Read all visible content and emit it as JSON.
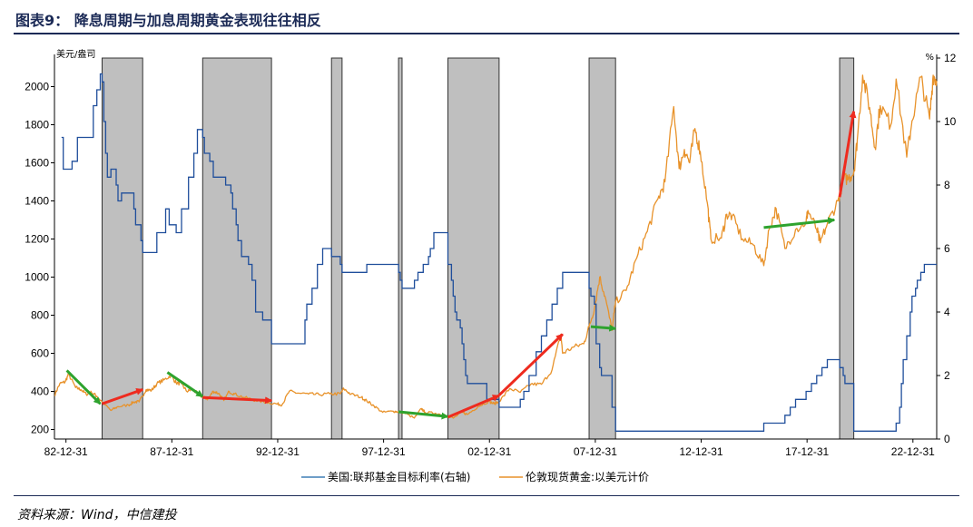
{
  "title": "图表9：  降息周期与加息周期黄金表现往往相反",
  "source": "资料来源：Wind，中信建投",
  "colors": {
    "fed_rate": "#1f4e9b",
    "fed_rate_light": "#3f7fb5",
    "gold": "#e8922a",
    "gold_highlight": "#c9b53a",
    "shade": "#bfbfbf",
    "arrow_green": "#2ea32e",
    "arrow_red": "#ee2b1f",
    "header": "#1b2a56"
  },
  "chart_data": {
    "type": "line",
    "title": "",
    "left_axis": {
      "unit": "美元/盎司",
      "range": [
        150,
        2150
      ],
      "ticks": [
        "200",
        "400",
        "600",
        "800",
        "1000",
        "1200",
        "1400",
        "1600",
        "1800",
        "2000"
      ]
    },
    "right_axis": {
      "unit": "%",
      "range": [
        0,
        12
      ],
      "ticks": [
        "0",
        "2",
        "4",
        "6",
        "8",
        "10",
        "12"
      ]
    },
    "x_axis": {
      "range": [
        "1982-06",
        "2024-02"
      ],
      "ticks": [
        "82-12-31",
        "87-12-31",
        "92-12-31",
        "97-12-31",
        "02-12-31",
        "07-12-31",
        "12-12-31",
        "17-12-31",
        "22-12-31"
      ]
    },
    "shaded_periods": [
      [
        "1984-09",
        "1986-08"
      ],
      [
        "1989-06",
        "1992-09"
      ],
      [
        "1995-07",
        "1996-01"
      ],
      [
        "1998-09",
        "1998-11"
      ],
      [
        "2001-01",
        "2003-06"
      ],
      [
        "2007-09",
        "2008-12"
      ],
      [
        "2019-07",
        "2020-03"
      ]
    ],
    "series": [
      {
        "name": "美国:联邦基金目标利率(右轴)",
        "axis": "right",
        "points": [
          [
            "1982-10",
            9.5
          ],
          [
            "1982-11",
            8.5
          ],
          [
            "1983-02",
            8.5
          ],
          [
            "1983-04",
            8.75
          ],
          [
            "1983-07",
            9.5
          ],
          [
            "1984-01",
            9.5
          ],
          [
            "1984-04",
            10.5
          ],
          [
            "1984-06",
            11.0
          ],
          [
            "1984-08",
            11.5
          ],
          [
            "1984-09",
            11.25
          ],
          [
            "1984-10",
            10.0
          ],
          [
            "1984-11",
            9.0
          ],
          [
            "1984-12",
            8.25
          ],
          [
            "1985-02",
            8.5
          ],
          [
            "1985-05",
            8.0
          ],
          [
            "1985-06",
            7.5
          ],
          [
            "1985-08",
            7.75
          ],
          [
            "1985-12",
            7.75
          ],
          [
            "1986-03",
            7.25
          ],
          [
            "1986-04",
            6.75
          ],
          [
            "1986-07",
            6.25
          ],
          [
            "1986-08",
            5.875
          ],
          [
            "1986-12",
            5.875
          ],
          [
            "1987-04",
            6.5
          ],
          [
            "1987-09",
            7.25
          ],
          [
            "1987-11",
            6.75
          ],
          [
            "1988-03",
            6.5
          ],
          [
            "1988-06",
            7.25
          ],
          [
            "1988-10",
            8.25
          ],
          [
            "1989-01",
            9.0
          ],
          [
            "1989-03",
            9.75
          ],
          [
            "1989-06",
            9.5
          ],
          [
            "1989-07",
            9.0
          ],
          [
            "1989-10",
            8.75
          ],
          [
            "1989-12",
            8.25
          ],
          [
            "1990-07",
            8.0
          ],
          [
            "1990-10",
            7.75
          ],
          [
            "1990-11",
            7.25
          ],
          [
            "1991-01",
            6.75
          ],
          [
            "1991-02",
            6.25
          ],
          [
            "1991-04",
            5.75
          ],
          [
            "1991-08",
            5.5
          ],
          [
            "1991-10",
            5.0
          ],
          [
            "1991-12",
            4.0
          ],
          [
            "1992-04",
            3.75
          ],
          [
            "1992-09",
            3.0
          ],
          [
            "1994-02",
            3.0
          ],
          [
            "1994-04",
            3.75
          ],
          [
            "1994-05",
            4.25
          ],
          [
            "1994-08",
            4.75
          ],
          [
            "1994-11",
            5.5
          ],
          [
            "1995-02",
            6.0
          ],
          [
            "1995-07",
            5.75
          ],
          [
            "1995-12",
            5.5
          ],
          [
            "1996-01",
            5.25
          ],
          [
            "1997-03",
            5.5
          ],
          [
            "1998-09",
            5.25
          ],
          [
            "1998-10",
            5.0
          ],
          [
            "1998-11",
            4.75
          ],
          [
            "1999-06",
            5.0
          ],
          [
            "1999-08",
            5.25
          ],
          [
            "1999-11",
            5.5
          ],
          [
            "2000-02",
            5.75
          ],
          [
            "2000-03",
            6.0
          ],
          [
            "2000-05",
            6.5
          ],
          [
            "2000-12",
            6.5
          ],
          [
            "2001-01",
            5.5
          ],
          [
            "2001-03",
            5.0
          ],
          [
            "2001-04",
            4.5
          ],
          [
            "2001-05",
            4.0
          ],
          [
            "2001-06",
            3.75
          ],
          [
            "2001-08",
            3.5
          ],
          [
            "2001-09",
            3.0
          ],
          [
            "2001-10",
            2.5
          ],
          [
            "2001-11",
            2.0
          ],
          [
            "2001-12",
            1.75
          ],
          [
            "2002-11",
            1.25
          ],
          [
            "2003-06",
            1.0
          ],
          [
            "2004-06",
            1.25
          ],
          [
            "2004-08",
            1.5
          ],
          [
            "2004-11",
            2.0
          ],
          [
            "2005-03",
            2.75
          ],
          [
            "2005-06",
            3.25
          ],
          [
            "2005-09",
            3.75
          ],
          [
            "2005-12",
            4.25
          ],
          [
            "2006-03",
            4.75
          ],
          [
            "2006-06",
            5.25
          ],
          [
            "2007-09",
            4.75
          ],
          [
            "2007-10",
            4.5
          ],
          [
            "2007-12",
            4.25
          ],
          [
            "2008-01",
            3.0
          ],
          [
            "2008-03",
            2.25
          ],
          [
            "2008-04",
            2.0
          ],
          [
            "2008-10",
            1.0
          ],
          [
            "2008-12",
            0.25
          ],
          [
            "2015-12",
            0.5
          ],
          [
            "2016-12",
            0.75
          ],
          [
            "2017-03",
            1.0
          ],
          [
            "2017-06",
            1.25
          ],
          [
            "2017-12",
            1.5
          ],
          [
            "2018-03",
            1.75
          ],
          [
            "2018-06",
            2.0
          ],
          [
            "2018-09",
            2.25
          ],
          [
            "2018-12",
            2.5
          ],
          [
            "2019-07",
            2.25
          ],
          [
            "2019-09",
            2.0
          ],
          [
            "2019-10",
            1.75
          ],
          [
            "2020-03",
            0.25
          ],
          [
            "2022-03",
            0.5
          ],
          [
            "2022-05",
            1.0
          ],
          [
            "2022-06",
            1.75
          ],
          [
            "2022-07",
            2.5
          ],
          [
            "2022-09",
            3.25
          ],
          [
            "2022-11",
            4.0
          ],
          [
            "2022-12",
            4.5
          ],
          [
            "2023-02",
            4.75
          ],
          [
            "2023-03",
            5.0
          ],
          [
            "2023-05",
            5.25
          ],
          [
            "2023-07",
            5.5
          ],
          [
            "2024-02",
            5.5
          ]
        ]
      },
      {
        "name": "伦敦现货黄金:以美元计价",
        "axis": "left",
        "points": [
          [
            "1982-06",
            380
          ],
          [
            "1982-09",
            440
          ],
          [
            "1982-12",
            450
          ],
          [
            "1983-02",
            490
          ],
          [
            "1983-06",
            420
          ],
          [
            "1983-09",
            410
          ],
          [
            "1983-12",
            385
          ],
          [
            "1984-03",
            395
          ],
          [
            "1984-06",
            375
          ],
          [
            "1984-09",
            345
          ],
          [
            "1985-02",
            300
          ],
          [
            "1985-06",
            320
          ],
          [
            "1985-12",
            328
          ],
          [
            "1986-03",
            345
          ],
          [
            "1986-06",
            345
          ],
          [
            "1986-10",
            410
          ],
          [
            "1987-01",
            405
          ],
          [
            "1987-04",
            440
          ],
          [
            "1987-08",
            460
          ],
          [
            "1987-12",
            484
          ],
          [
            "1988-03",
            445
          ],
          [
            "1988-06",
            440
          ],
          [
            "1988-09",
            400
          ],
          [
            "1988-12",
            410
          ],
          [
            "1989-03",
            390
          ],
          [
            "1989-06",
            370
          ],
          [
            "1989-09",
            360
          ],
          [
            "1989-12",
            401
          ],
          [
            "1990-03",
            390
          ],
          [
            "1990-06",
            352
          ],
          [
            "1990-09",
            400
          ],
          [
            "1990-12",
            386
          ],
          [
            "1991-06",
            367
          ],
          [
            "1991-12",
            353
          ],
          [
            "1992-06",
            343
          ],
          [
            "1992-12",
            334
          ],
          [
            "1993-03",
            330
          ],
          [
            "1993-07",
            400
          ],
          [
            "1993-12",
            391
          ],
          [
            "1994-06",
            386
          ],
          [
            "1994-12",
            383
          ],
          [
            "1995-06",
            387
          ],
          [
            "1995-12",
            387
          ],
          [
            "1996-02",
            414
          ],
          [
            "1996-06",
            385
          ],
          [
            "1996-12",
            369
          ],
          [
            "1997-03",
            350
          ],
          [
            "1997-07",
            325
          ],
          [
            "1997-12",
            290
          ],
          [
            "1998-06",
            296
          ],
          [
            "1998-09",
            293
          ],
          [
            "1998-12",
            288
          ],
          [
            "1999-06",
            260
          ],
          [
            "1999-10",
            310
          ],
          [
            "1999-12",
            290
          ],
          [
            "2000-06",
            285
          ],
          [
            "2000-12",
            272
          ],
          [
            "2001-04",
            260
          ],
          [
            "2001-09",
            290
          ],
          [
            "2001-12",
            279
          ],
          [
            "2002-06",
            320
          ],
          [
            "2002-12",
            348
          ],
          [
            "2003-03",
            335
          ],
          [
            "2003-06",
            346
          ],
          [
            "2003-12",
            415
          ],
          [
            "2004-06",
            395
          ],
          [
            "2004-12",
            438
          ],
          [
            "2005-06",
            437
          ],
          [
            "2005-12",
            513
          ],
          [
            "2006-05",
            700
          ],
          [
            "2006-06",
            600
          ],
          [
            "2006-12",
            632
          ],
          [
            "2007-06",
            650
          ],
          [
            "2007-09",
            740
          ],
          [
            "2007-12",
            834
          ],
          [
            "2008-03",
            1000
          ],
          [
            "2008-06",
            900
          ],
          [
            "2008-10",
            720
          ],
          [
            "2008-12",
            869
          ],
          [
            "2009-06",
            930
          ],
          [
            "2009-12",
            1100
          ],
          [
            "2010-06",
            1240
          ],
          [
            "2010-12",
            1410
          ],
          [
            "2011-04",
            1500
          ],
          [
            "2011-09",
            1895
          ],
          [
            "2011-12",
            1570
          ],
          [
            "2012-03",
            1670
          ],
          [
            "2012-06",
            1600
          ],
          [
            "2012-09",
            1780
          ],
          [
            "2012-12",
            1660
          ],
          [
            "2013-04",
            1390
          ],
          [
            "2013-06",
            1200
          ],
          [
            "2013-12",
            1205
          ],
          [
            "2014-03",
            1330
          ],
          [
            "2014-06",
            1320
          ],
          [
            "2014-12",
            1200
          ],
          [
            "2015-06",
            1170
          ],
          [
            "2015-12",
            1060
          ],
          [
            "2016-03",
            1250
          ],
          [
            "2016-07",
            1360
          ],
          [
            "2016-12",
            1150
          ],
          [
            "2017-06",
            1250
          ],
          [
            "2017-12",
            1290
          ],
          [
            "2018-01",
            1350
          ],
          [
            "2018-06",
            1250
          ],
          [
            "2018-08",
            1180
          ],
          [
            "2018-12",
            1280
          ],
          [
            "2019-06",
            1400
          ],
          [
            "2019-09",
            1510
          ],
          [
            "2019-12",
            1520
          ],
          [
            "2020-03",
            1550
          ],
          [
            "2020-05",
            1720
          ],
          [
            "2020-08",
            2060
          ],
          [
            "2020-12",
            1890
          ],
          [
            "2021-03",
            1680
          ],
          [
            "2021-06",
            1900
          ],
          [
            "2021-12",
            1800
          ],
          [
            "2022-03",
            2040
          ],
          [
            "2022-09",
            1630
          ],
          [
            "2022-12",
            1820
          ],
          [
            "2023-05",
            2050
          ],
          [
            "2023-10",
            1830
          ],
          [
            "2023-12",
            2060
          ],
          [
            "2024-02",
            2030
          ]
        ]
      }
    ],
    "annotations": [
      {
        "color": "green",
        "from": [
          "1983-01",
          510
        ],
        "to": [
          "1984-08",
          335
        ]
      },
      {
        "color": "red",
        "from": [
          "1984-09",
          335
        ],
        "to": [
          "1986-08",
          410
        ]
      },
      {
        "color": "green",
        "from": [
          "1987-10",
          500
        ],
        "to": [
          "1989-06",
          373
        ]
      },
      {
        "color": "red",
        "from": [
          "1989-06",
          368
        ],
        "to": [
          "1992-09",
          352
        ]
      },
      {
        "color": "green",
        "from": [
          "1998-09",
          293
        ],
        "to": [
          "2001-01",
          268
        ]
      },
      {
        "color": "red",
        "from": [
          "2001-01",
          265
        ],
        "to": [
          "2003-06",
          378
        ]
      },
      {
        "color": "red",
        "from": [
          "2003-06",
          380
        ],
        "to": [
          "2006-06",
          700
        ]
      },
      {
        "color": "green",
        "from": [
          "2007-10",
          740
        ],
        "to": [
          "2008-12",
          730
        ]
      },
      {
        "color": "green",
        "from": [
          "2015-12",
          1260
        ],
        "to": [
          "2019-04",
          1300
        ]
      },
      {
        "color": "red",
        "from": [
          "2019-07",
          1420
        ],
        "to": [
          "2020-03",
          1870
        ]
      }
    ],
    "legend": {
      "position": "bottom",
      "entries": [
        "美国:联邦基金目标利率(右轴)",
        "伦敦现货黄金:以美元计价"
      ]
    }
  }
}
